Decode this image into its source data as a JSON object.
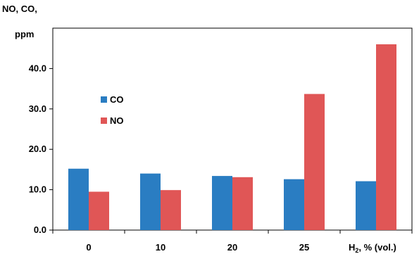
{
  "chart_data": {
    "type": "bar",
    "ylabel_line1": "NO, CO,",
    "ylabel_line2": "ppm",
    "xlabel_last_prefix": "H",
    "xlabel_last_sub": "2",
    "xlabel_last_suffix": ", % (vol.)",
    "categories": [
      "0",
      "10",
      "20",
      "25",
      ""
    ],
    "ylim": [
      0,
      50
    ],
    "y_ticks": [
      0,
      10,
      20,
      30,
      40
    ],
    "y_tick_labels": [
      "0.0",
      "10.0",
      "20.0",
      "30.0",
      "40.0"
    ],
    "grid": false,
    "legend_position": "left-middle",
    "series": [
      {
        "name": "CO",
        "color": "#2a7dc2",
        "values": [
          15.2,
          14.0,
          13.4,
          12.6,
          12.1
        ]
      },
      {
        "name": "NO",
        "color": "#e05656",
        "values": [
          9.5,
          9.9,
          13.1,
          33.7,
          46.0
        ]
      }
    ]
  }
}
